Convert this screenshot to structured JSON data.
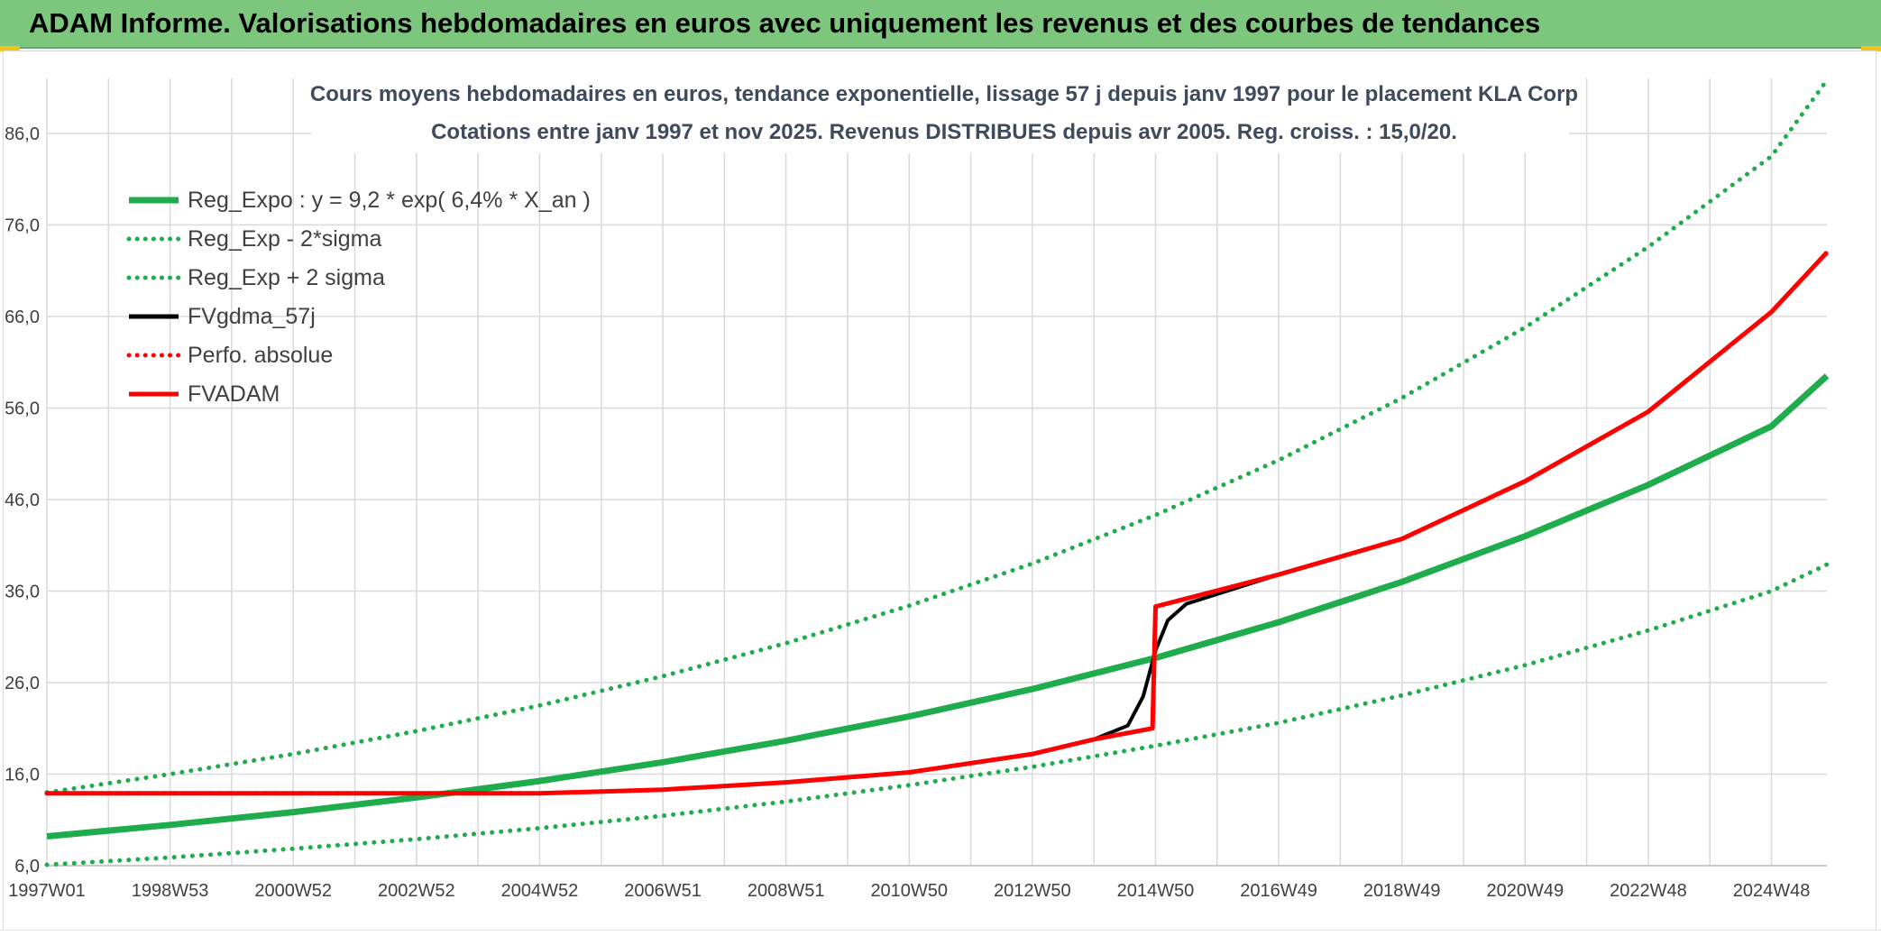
{
  "banner": {
    "title": "ADAM Informe. Valorisations hebdomadaires en euros avec uniquement les revenus et des courbes de tendances"
  },
  "chart_data": {
    "type": "line",
    "title_line1": "Cours moyens hebdomadaires en euros, tendance exponentielle, lissage 57 j depuis janv 1997 pour le placement KLA Corp",
    "title_line2": "Cotations entre janv 1997 et nov 2025. Revenus DISTRIBUES depuis avr 2005. Reg. croiss. : 15,0/20.",
    "ylim": [
      6,
      92
    ],
    "y_ticks": [
      "6,0",
      "16,0",
      "26,0",
      "36,0",
      "46,0",
      "56,0",
      "66,0",
      "76,0",
      "86,0"
    ],
    "x_range_years": [
      1997.0,
      2025.9
    ],
    "x_ticks": [
      {
        "label": "1997W01",
        "year": 1997.0
      },
      {
        "label": "1998W53",
        "year": 1999.0
      },
      {
        "label": "2000W52",
        "year": 2001.0
      },
      {
        "label": "2002W52",
        "year": 2003.0
      },
      {
        "label": "2004W52",
        "year": 2005.0
      },
      {
        "label": "2006W51",
        "year": 2007.0
      },
      {
        "label": "2008W51",
        "year": 2009.0
      },
      {
        "label": "2010W50",
        "year": 2011.0
      },
      {
        "label": "2012W50",
        "year": 2013.0
      },
      {
        "label": "2014W50",
        "year": 2015.0
      },
      {
        "label": "2016W49",
        "year": 2017.0
      },
      {
        "label": "2018W49",
        "year": 2019.0
      },
      {
        "label": "2020W49",
        "year": 2021.0
      },
      {
        "label": "2022W48",
        "year": 2023.0
      },
      {
        "label": "2024W48",
        "year": 2025.0
      }
    ],
    "legend_position": "top-left",
    "grid": true,
    "series": [
      {
        "name": "Reg_Expo : y = 9,2 * exp( 6,4% *  X_an )",
        "color": "#1fac4c",
        "style": "solid",
        "points": [
          [
            1997.0,
            9.2
          ],
          [
            1999.0,
            10.45
          ],
          [
            2001.0,
            11.85
          ],
          [
            2003.0,
            13.45
          ],
          [
            2005.0,
            15.25
          ],
          [
            2007.0,
            17.3
          ],
          [
            2009.0,
            19.65
          ],
          [
            2011.0,
            22.3
          ],
          [
            2013.0,
            25.3
          ],
          [
            2015.0,
            28.7
          ],
          [
            2017.0,
            32.6
          ],
          [
            2019.0,
            37.0
          ],
          [
            2021.0,
            42.0
          ],
          [
            2023.0,
            47.6
          ],
          [
            2025.0,
            54.0
          ],
          [
            2025.9,
            59.5
          ]
        ]
      },
      {
        "name": "Reg_Exp - 2*sigma",
        "color": "#1fac4c",
        "style": "dotted",
        "points": [
          [
            1997.0,
            6.1
          ],
          [
            1999.0,
            6.9
          ],
          [
            2001.0,
            7.85
          ],
          [
            2003.0,
            8.9
          ],
          [
            2005.0,
            10.1
          ],
          [
            2007.0,
            11.45
          ],
          [
            2009.0,
            13.0
          ],
          [
            2011.0,
            14.8
          ],
          [
            2013.0,
            16.8
          ],
          [
            2015.0,
            19.1
          ],
          [
            2017.0,
            21.6
          ],
          [
            2019.0,
            24.6
          ],
          [
            2021.0,
            27.9
          ],
          [
            2023.0,
            31.7
          ],
          [
            2025.0,
            36.0
          ],
          [
            2025.9,
            38.9
          ]
        ]
      },
      {
        "name": "Reg_Exp + 2 sigma",
        "color": "#1fac4c",
        "style": "dotted",
        "points": [
          [
            1997.0,
            14.0
          ],
          [
            1999.0,
            16.0
          ],
          [
            2001.0,
            18.2
          ],
          [
            2003.0,
            20.7
          ],
          [
            2005.0,
            23.5
          ],
          [
            2007.0,
            26.7
          ],
          [
            2009.0,
            30.3
          ],
          [
            2011.0,
            34.4
          ],
          [
            2013.0,
            39.0
          ],
          [
            2015.0,
            44.3
          ],
          [
            2017.0,
            50.3
          ],
          [
            2019.0,
            57.1
          ],
          [
            2021.0,
            64.8
          ],
          [
            2023.0,
            73.6
          ],
          [
            2025.0,
            83.5
          ],
          [
            2025.9,
            91.8
          ]
        ]
      },
      {
        "name": "FVgdma_57j",
        "color": "#000000",
        "style": "solid",
        "points": [
          [
            1997.0,
            13.9
          ],
          [
            2005.0,
            13.9
          ],
          [
            2007.0,
            14.3
          ],
          [
            2009.0,
            15.1
          ],
          [
            2011.0,
            16.2
          ],
          [
            2013.0,
            18.2
          ],
          [
            2014.0,
            19.8
          ],
          [
            2014.55,
            21.3
          ],
          [
            2014.8,
            24.5
          ],
          [
            2015.0,
            29.5
          ],
          [
            2015.2,
            32.8
          ],
          [
            2015.5,
            34.6
          ],
          [
            2017.0,
            37.8
          ],
          [
            2019.0,
            41.7
          ],
          [
            2021.0,
            48.0
          ],
          [
            2023.0,
            55.6
          ],
          [
            2025.0,
            66.5
          ],
          [
            2025.9,
            73.0
          ]
        ]
      },
      {
        "name": "Perfo. absolue",
        "color": "#ff0000",
        "style": "dotted",
        "points": [
          [
            1997.0,
            13.9
          ],
          [
            2005.0,
            13.9
          ],
          [
            2007.0,
            14.3
          ],
          [
            2009.0,
            15.1
          ],
          [
            2011.0,
            16.2
          ],
          [
            2013.0,
            18.2
          ],
          [
            2014.0,
            19.8
          ],
          [
            2014.95,
            21.0
          ],
          [
            2015.0,
            34.3
          ],
          [
            2017.0,
            37.8
          ],
          [
            2019.0,
            41.7
          ],
          [
            2021.0,
            48.0
          ],
          [
            2023.0,
            55.6
          ],
          [
            2025.0,
            66.5
          ],
          [
            2025.9,
            73.0
          ]
        ]
      },
      {
        "name": "FVADAM",
        "color": "#ff0000",
        "style": "solid",
        "points": [
          [
            1997.0,
            13.9
          ],
          [
            2005.0,
            13.9
          ],
          [
            2007.0,
            14.3
          ],
          [
            2009.0,
            15.1
          ],
          [
            2011.0,
            16.2
          ],
          [
            2013.0,
            18.2
          ],
          [
            2014.0,
            19.8
          ],
          [
            2014.95,
            21.0
          ],
          [
            2015.0,
            34.3
          ],
          [
            2017.0,
            37.8
          ],
          [
            2019.0,
            41.7
          ],
          [
            2021.0,
            48.0
          ],
          [
            2023.0,
            55.6
          ],
          [
            2025.0,
            66.5
          ],
          [
            2025.9,
            73.0
          ]
        ]
      }
    ]
  }
}
